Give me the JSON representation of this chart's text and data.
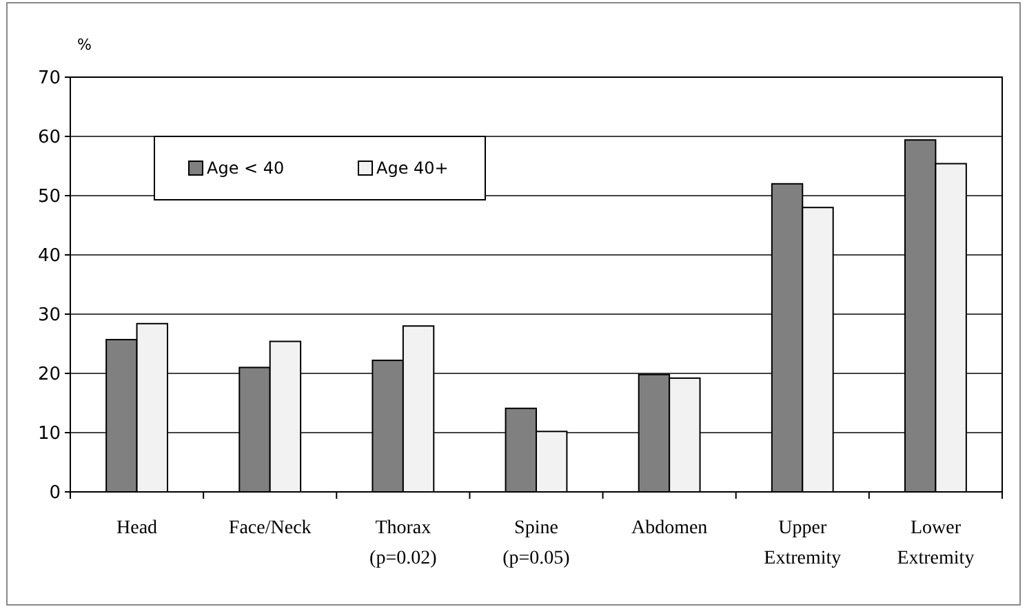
{
  "chart_data": {
    "type": "bar",
    "ylabel": "%",
    "categories": [
      "Head",
      "Face/Neck",
      "Thorax\n(p=0.02)",
      "Spine\n(p=0.05)",
      "Abdomen",
      "Upper\nExtremity",
      "Lower\nExtremity"
    ],
    "series": [
      {
        "name": "Age < 40",
        "color": "#808080",
        "values": [
          25.7,
          21,
          22.2,
          14.1,
          19.8,
          52,
          59.4
        ]
      },
      {
        "name": "Age 40+",
        "color": "#f2f2f2",
        "values": [
          28.4,
          25.4,
          28,
          10.2,
          19.2,
          48,
          55.4
        ]
      }
    ],
    "ylim": [
      0,
      70
    ],
    "yticks": [
      0,
      10,
      20,
      30,
      40,
      50,
      60,
      70
    ],
    "grid": "y",
    "legend": "top left"
  }
}
